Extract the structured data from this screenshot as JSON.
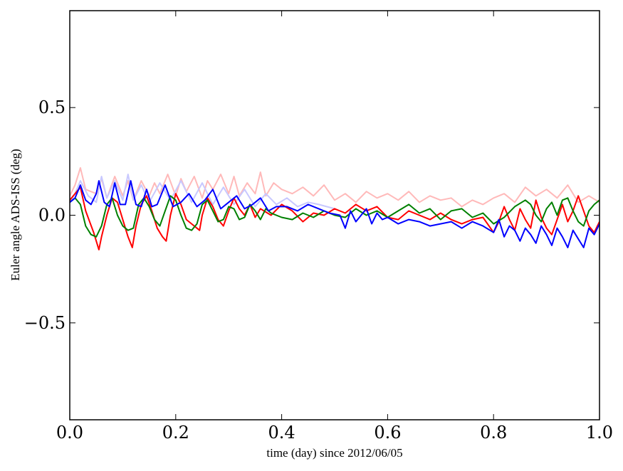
{
  "chart_data": {
    "type": "line",
    "title": "",
    "xlabel": "time (day) since 2012/06/05",
    "ylabel": "Euler angle ADS-ISS (deg)",
    "xlim": [
      0.0,
      1.0
    ],
    "ylim": [
      -0.95,
      0.95
    ],
    "grid": false,
    "legend": "none",
    "x_ticks": [
      0.0,
      0.2,
      0.4,
      0.6,
      0.8,
      1.0
    ],
    "x_tick_labels": [
      "0.0",
      "0.2",
      "0.4",
      "0.6",
      "0.8",
      "1.0"
    ],
    "y_ticks": [
      -0.5,
      0.0,
      0.5
    ],
    "y_tick_labels": [
      "−0.5",
      "0.0",
      "0.5"
    ],
    "series": [
      {
        "color": "#ffb9b9",
        "x": [
          0.0,
          0.01,
          0.02,
          0.03,
          0.05,
          0.06,
          0.07,
          0.085,
          0.1,
          0.11,
          0.12,
          0.135,
          0.15,
          0.16,
          0.17,
          0.185,
          0.2,
          0.21,
          0.22,
          0.235,
          0.25,
          0.26,
          0.27,
          0.285,
          0.3,
          0.31,
          0.32,
          0.335,
          0.35,
          0.36,
          0.37,
          0.385,
          0.4,
          0.42,
          0.44,
          0.46,
          0.48,
          0.5,
          0.52,
          0.54,
          0.56,
          0.58,
          0.6,
          0.62,
          0.64,
          0.66,
          0.68,
          0.7,
          0.72,
          0.74,
          0.76,
          0.78,
          0.8,
          0.82,
          0.84,
          0.86,
          0.88,
          0.9,
          0.92,
          0.94,
          0.96,
          0.98,
          1.0
        ],
        "y": [
          0.09,
          0.14,
          0.22,
          0.12,
          0.1,
          0.17,
          0.08,
          0.18,
          0.09,
          0.16,
          0.07,
          0.16,
          0.09,
          0.15,
          0.1,
          0.19,
          0.09,
          0.17,
          0.11,
          0.18,
          0.08,
          0.16,
          0.12,
          0.19,
          0.1,
          0.18,
          0.09,
          0.15,
          0.1,
          0.2,
          0.09,
          0.15,
          0.12,
          0.1,
          0.13,
          0.09,
          0.14,
          0.07,
          0.1,
          0.06,
          0.11,
          0.08,
          0.1,
          0.07,
          0.11,
          0.06,
          0.09,
          0.07,
          0.08,
          0.04,
          0.07,
          0.05,
          0.08,
          0.1,
          0.06,
          0.13,
          0.09,
          0.12,
          0.08,
          0.14,
          0.06,
          0.09,
          0.06
        ]
      },
      {
        "color": "#c8c8ff",
        "x": [
          0.0,
          0.01,
          0.02,
          0.035,
          0.05,
          0.06,
          0.07,
          0.085,
          0.1,
          0.11,
          0.12,
          0.135,
          0.15,
          0.17,
          0.19,
          0.21,
          0.23,
          0.25,
          0.27,
          0.29,
          0.31,
          0.33,
          0.35,
          0.37,
          0.39,
          0.41,
          0.43,
          0.45,
          0.47,
          0.5
        ],
        "y": [
          0.06,
          0.1,
          0.16,
          0.09,
          0.06,
          0.18,
          0.08,
          0.16,
          0.07,
          0.19,
          0.07,
          0.14,
          0.06,
          0.15,
          0.07,
          0.16,
          0.06,
          0.15,
          0.05,
          0.13,
          0.05,
          0.12,
          0.04,
          0.1,
          0.05,
          0.08,
          0.04,
          0.06,
          0.05,
          0.03
        ]
      },
      {
        "color": "#ff0000",
        "x": [
          0.0,
          0.01,
          0.02,
          0.03,
          0.045,
          0.055,
          0.06,
          0.07,
          0.08,
          0.09,
          0.1,
          0.11,
          0.118,
          0.125,
          0.135,
          0.145,
          0.155,
          0.165,
          0.175,
          0.182,
          0.19,
          0.2,
          0.21,
          0.22,
          0.23,
          0.24,
          0.245,
          0.25,
          0.26,
          0.27,
          0.28,
          0.29,
          0.3,
          0.31,
          0.32,
          0.33,
          0.34,
          0.35,
          0.36,
          0.38,
          0.4,
          0.42,
          0.44,
          0.46,
          0.48,
          0.5,
          0.52,
          0.54,
          0.56,
          0.58,
          0.6,
          0.62,
          0.64,
          0.66,
          0.68,
          0.7,
          0.72,
          0.74,
          0.76,
          0.78,
          0.8,
          0.81,
          0.82,
          0.83,
          0.84,
          0.85,
          0.86,
          0.87,
          0.88,
          0.89,
          0.9,
          0.91,
          0.92,
          0.93,
          0.94,
          0.95,
          0.96,
          0.97,
          0.98,
          0.99,
          1.0
        ],
        "y": [
          0.07,
          0.1,
          0.13,
          0.02,
          -0.08,
          -0.16,
          -0.1,
          0.0,
          0.08,
          0.06,
          -0.02,
          -0.1,
          -0.15,
          -0.05,
          0.05,
          0.09,
          0.02,
          -0.06,
          -0.1,
          -0.12,
          0.0,
          0.1,
          0.05,
          -0.02,
          -0.04,
          -0.06,
          -0.07,
          0.0,
          0.08,
          0.04,
          -0.02,
          -0.05,
          0.02,
          0.08,
          0.03,
          0.0,
          0.05,
          -0.01,
          0.03,
          0.0,
          0.05,
          0.02,
          -0.03,
          0.01,
          0.0,
          0.03,
          0.01,
          0.05,
          0.02,
          0.04,
          -0.01,
          -0.02,
          0.02,
          0.0,
          -0.02,
          0.01,
          -0.02,
          -0.04,
          -0.02,
          -0.01,
          -0.08,
          -0.03,
          0.04,
          -0.02,
          -0.07,
          0.03,
          -0.02,
          -0.06,
          0.07,
          -0.01,
          -0.06,
          -0.09,
          -0.02,
          0.05,
          -0.03,
          0.02,
          0.09,
          0.02,
          -0.05,
          -0.08,
          -0.03
        ]
      },
      {
        "color": "#008000",
        "x": [
          0.0,
          0.01,
          0.02,
          0.03,
          0.04,
          0.05,
          0.06,
          0.07,
          0.08,
          0.09,
          0.1,
          0.11,
          0.12,
          0.13,
          0.14,
          0.15,
          0.16,
          0.17,
          0.18,
          0.19,
          0.2,
          0.21,
          0.22,
          0.23,
          0.24,
          0.25,
          0.26,
          0.27,
          0.28,
          0.29,
          0.3,
          0.31,
          0.32,
          0.33,
          0.34,
          0.35,
          0.36,
          0.37,
          0.38,
          0.4,
          0.42,
          0.44,
          0.46,
          0.48,
          0.5,
          0.52,
          0.54,
          0.56,
          0.58,
          0.6,
          0.62,
          0.64,
          0.66,
          0.68,
          0.7,
          0.72,
          0.74,
          0.76,
          0.78,
          0.8,
          0.82,
          0.84,
          0.86,
          0.87,
          0.88,
          0.89,
          0.9,
          0.91,
          0.92,
          0.93,
          0.94,
          0.95,
          0.96,
          0.97,
          0.98,
          0.99,
          1.0
        ],
        "y": [
          0.06,
          0.08,
          0.05,
          -0.05,
          -0.09,
          -0.1,
          -0.05,
          0.05,
          0.08,
          0.0,
          -0.05,
          -0.07,
          -0.06,
          0.05,
          0.08,
          0.04,
          -0.02,
          -0.05,
          0.02,
          0.09,
          0.07,
          0.0,
          -0.06,
          -0.07,
          -0.04,
          0.05,
          0.07,
          0.02,
          -0.03,
          -0.02,
          0.04,
          0.03,
          -0.02,
          -0.01,
          0.05,
          0.02,
          -0.02,
          0.03,
          0.01,
          -0.01,
          -0.02,
          0.01,
          -0.01,
          0.02,
          0.0,
          -0.01,
          0.03,
          0.0,
          0.02,
          -0.01,
          0.02,
          0.05,
          0.01,
          0.03,
          -0.02,
          0.02,
          0.03,
          -0.01,
          0.01,
          -0.04,
          -0.01,
          0.04,
          0.07,
          0.05,
          0.0,
          -0.03,
          0.03,
          0.06,
          0.0,
          0.07,
          0.08,
          0.02,
          -0.03,
          -0.05,
          0.02,
          0.05,
          0.07
        ]
      },
      {
        "color": "#0000ff",
        "x": [
          0.0,
          0.01,
          0.02,
          0.03,
          0.04,
          0.05,
          0.055,
          0.065,
          0.075,
          0.085,
          0.095,
          0.105,
          0.115,
          0.125,
          0.135,
          0.145,
          0.155,
          0.165,
          0.18,
          0.195,
          0.21,
          0.225,
          0.24,
          0.255,
          0.27,
          0.285,
          0.3,
          0.315,
          0.33,
          0.345,
          0.36,
          0.375,
          0.39,
          0.41,
          0.43,
          0.45,
          0.47,
          0.49,
          0.51,
          0.52,
          0.53,
          0.54,
          0.55,
          0.56,
          0.57,
          0.58,
          0.59,
          0.6,
          0.62,
          0.64,
          0.66,
          0.68,
          0.7,
          0.72,
          0.74,
          0.76,
          0.78,
          0.8,
          0.81,
          0.82,
          0.83,
          0.84,
          0.85,
          0.86,
          0.87,
          0.88,
          0.89,
          0.9,
          0.91,
          0.92,
          0.93,
          0.94,
          0.95,
          0.96,
          0.97,
          0.98,
          0.99,
          1.0
        ],
        "y": [
          0.06,
          0.08,
          0.14,
          0.07,
          0.05,
          0.1,
          0.16,
          0.06,
          0.04,
          0.15,
          0.05,
          0.05,
          0.16,
          0.05,
          0.04,
          0.12,
          0.04,
          0.05,
          0.14,
          0.04,
          0.06,
          0.1,
          0.04,
          0.07,
          0.12,
          0.03,
          0.06,
          0.09,
          0.03,
          0.05,
          0.08,
          0.02,
          0.04,
          0.04,
          0.02,
          0.05,
          0.03,
          0.01,
          0.0,
          -0.06,
          0.02,
          -0.03,
          0.0,
          0.03,
          -0.04,
          0.01,
          -0.02,
          -0.01,
          -0.04,
          -0.02,
          -0.03,
          -0.05,
          -0.04,
          -0.03,
          -0.06,
          -0.03,
          -0.05,
          -0.08,
          -0.02,
          -0.1,
          -0.05,
          -0.07,
          -0.12,
          -0.06,
          -0.09,
          -0.13,
          -0.05,
          -0.09,
          -0.14,
          -0.06,
          -0.1,
          -0.15,
          -0.07,
          -0.11,
          -0.15,
          -0.06,
          -0.09,
          -0.04
        ]
      }
    ]
  }
}
